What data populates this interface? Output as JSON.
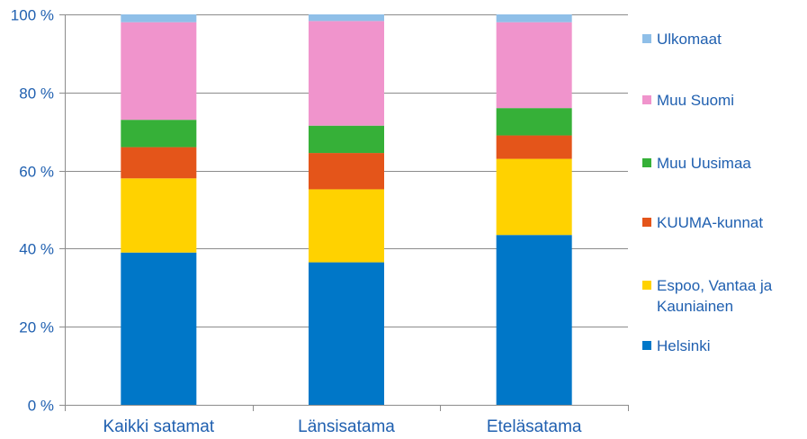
{
  "chart_data": {
    "type": "bar",
    "stacked": true,
    "categories": [
      "Kaikki satamat",
      "Länsisatama",
      "Eteläsatama"
    ],
    "series": [
      {
        "name": "Helsinki",
        "color": "#0077c8",
        "values": [
          39,
          36.5,
          43.5
        ]
      },
      {
        "name": "Espoo, Vantaa ja Kauniainen",
        "color": "#ffd200",
        "values": [
          19,
          18.7,
          19.5
        ]
      },
      {
        "name": "KUUMA-kunnat",
        "color": "#e4551a",
        "values": [
          8,
          9.3,
          6
        ]
      },
      {
        "name": "Muu Uusimaa",
        "color": "#36b038",
        "values": [
          7,
          7,
          7
        ]
      },
      {
        "name": "Muu Suomi",
        "color": "#f094cc",
        "values": [
          25,
          26.8,
          22
        ]
      },
      {
        "name": "Ulkomaat",
        "color": "#8fbfe8",
        "values": [
          2,
          1.7,
          2
        ]
      }
    ],
    "y_ticks": [
      "0 %",
      "20 %",
      "40 %",
      "60 %",
      "80 %",
      "100 %"
    ],
    "ylim": [
      0,
      100
    ],
    "grid": true,
    "legend_position": "right",
    "title": "",
    "xlabel": "",
    "ylabel": ""
  }
}
